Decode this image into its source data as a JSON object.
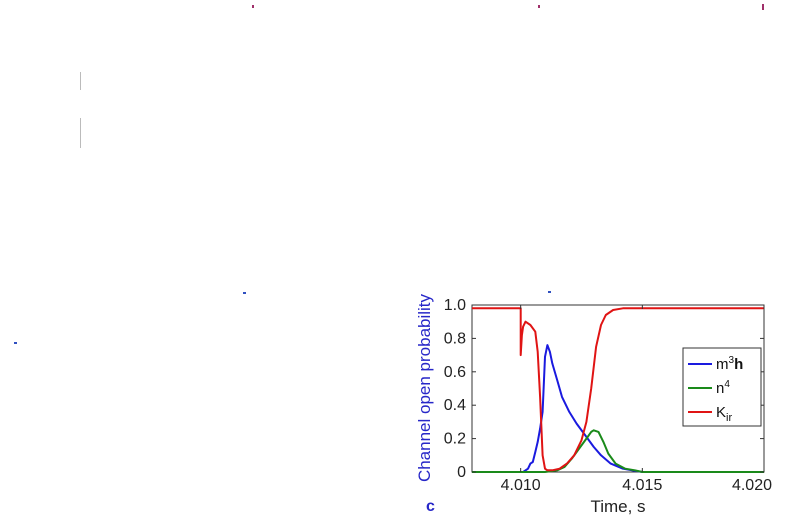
{
  "chart_data": {
    "type": "line",
    "panel_label": "c",
    "xlabel": "Time, s",
    "ylabel": "Channel open probability",
    "xlim": [
      4.008,
      4.02
    ],
    "ylim": [
      0,
      1.0
    ],
    "x_ticks": [
      "4.010",
      "4.015",
      "4.020"
    ],
    "x_tick_values": [
      4.01,
      4.015,
      4.02
    ],
    "y_ticks": [
      "0",
      "0.2",
      "0.4",
      "0.6",
      "0.8",
      "1.0"
    ],
    "y_tick_values": [
      0,
      0.2,
      0.4,
      0.6,
      0.8,
      1.0
    ],
    "legend_position": "right",
    "grid": false,
    "series": [
      {
        "name": "m³h",
        "color": "#1a1adf",
        "x": [
          4.008,
          4.0095,
          4.0101,
          4.0103,
          4.0104,
          4.0105,
          4.0106,
          4.0107,
          4.0108,
          4.0109,
          4.011,
          4.0111,
          4.0112,
          4.0113,
          4.0115,
          4.0117,
          4.012,
          4.0123,
          4.0127,
          4.013,
          4.0133,
          4.0137,
          4.0142,
          4.015,
          4.02
        ],
        "values": [
          0,
          0,
          0,
          0.02,
          0.05,
          0.06,
          0.12,
          0.18,
          0.26,
          0.36,
          0.69,
          0.76,
          0.72,
          0.65,
          0.55,
          0.45,
          0.36,
          0.29,
          0.21,
          0.15,
          0.1,
          0.05,
          0.02,
          0,
          0
        ]
      },
      {
        "name": "n⁴",
        "color": "#1a8a1a",
        "x": [
          4.008,
          4.011,
          4.0115,
          4.0118,
          4.0121,
          4.0124,
          4.0127,
          4.0129,
          4.013,
          4.0132,
          4.0134,
          4.0136,
          4.0139,
          4.0143,
          4.0147,
          4.015,
          4.02
        ],
        "values": [
          0,
          0,
          0.01,
          0.03,
          0.08,
          0.14,
          0.2,
          0.24,
          0.25,
          0.24,
          0.18,
          0.11,
          0.05,
          0.02,
          0.01,
          0,
          0
        ]
      },
      {
        "name": "Kir",
        "color": "#e01414",
        "x": [
          4.008,
          4.0099,
          4.01,
          4.01,
          4.01005,
          4.0101,
          4.0102,
          4.0104,
          4.0106,
          4.0107,
          4.0108,
          4.0109,
          4.011,
          4.0111,
          4.0113,
          4.0116,
          4.0119,
          4.0122,
          4.0125,
          4.0127,
          4.0129,
          4.0131,
          4.0133,
          4.0135,
          4.0138,
          4.0142,
          4.015,
          4.02
        ],
        "values": [
          0.98,
          0.98,
          0.98,
          0.7,
          0.82,
          0.87,
          0.9,
          0.88,
          0.84,
          0.72,
          0.45,
          0.1,
          0.02,
          0.01,
          0.01,
          0.02,
          0.05,
          0.1,
          0.19,
          0.3,
          0.5,
          0.75,
          0.88,
          0.94,
          0.97,
          0.98,
          0.98,
          0.98
        ]
      }
    ],
    "legend": [
      {
        "base": "m",
        "sup": "3",
        "suffix": "h"
      },
      {
        "base": "n",
        "sup": "4",
        "suffix": ""
      },
      {
        "base": "K",
        "sub": "ir",
        "suffix": ""
      }
    ]
  }
}
